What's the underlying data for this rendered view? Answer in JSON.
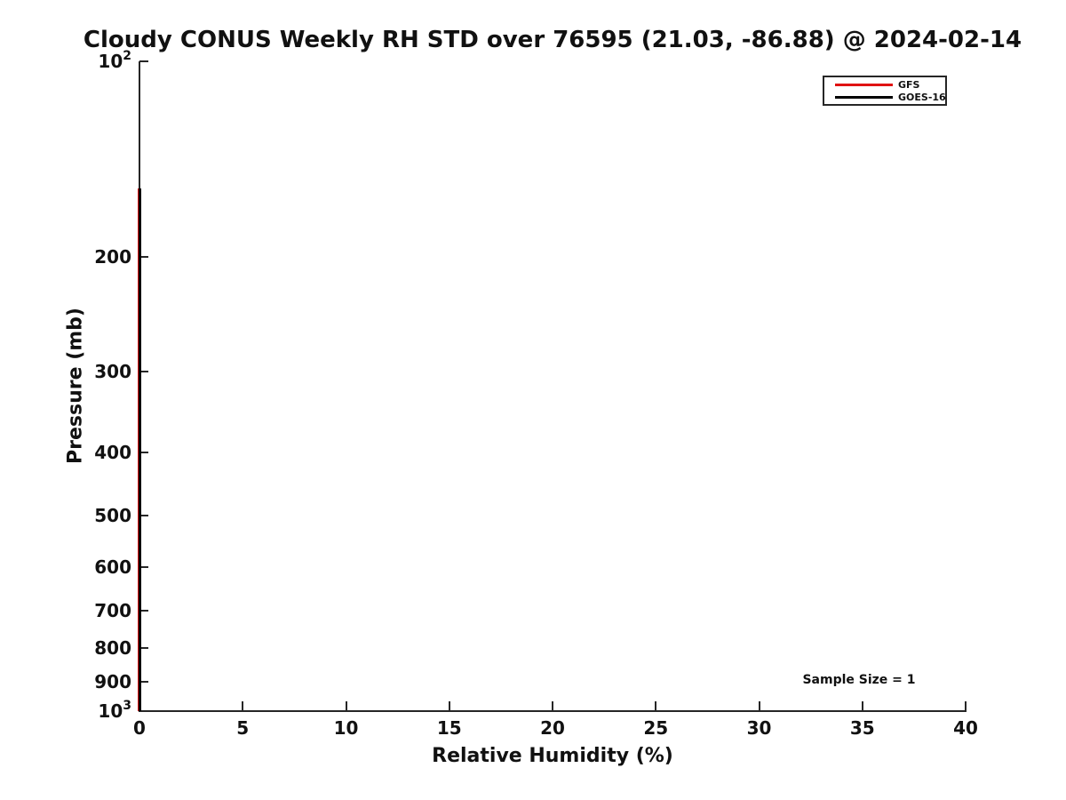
{
  "chart_data": {
    "type": "line",
    "title": "Cloudy CONUS Weekly RH STD over 76595 (21.03, -86.88) @ 2024-02-14",
    "xlabel": "Relative Humidity (%)",
    "ylabel": "Pressure (mb)",
    "annotation": "Sample Size = 1",
    "grid": false,
    "x_axis": {
      "min": 0,
      "max": 40,
      "scale": "linear",
      "ticks": [
        {
          "value": 0,
          "label": "0"
        },
        {
          "value": 5,
          "label": "5"
        },
        {
          "value": 10,
          "label": "10"
        },
        {
          "value": 15,
          "label": "15"
        },
        {
          "value": 20,
          "label": "20"
        },
        {
          "value": 25,
          "label": "25"
        },
        {
          "value": 30,
          "label": "30"
        },
        {
          "value": 35,
          "label": "35"
        },
        {
          "value": 40,
          "label": "40"
        }
      ]
    },
    "y_axis": {
      "min": 100,
      "max": 1000,
      "scale": "log",
      "inverted": true,
      "ticks": [
        {
          "value": 100,
          "label": "10^2"
        },
        {
          "value": 200,
          "label": "200"
        },
        {
          "value": 300,
          "label": "300"
        },
        {
          "value": 400,
          "label": "400"
        },
        {
          "value": 500,
          "label": "500"
        },
        {
          "value": 600,
          "label": "600"
        },
        {
          "value": 700,
          "label": "700"
        },
        {
          "value": 800,
          "label": "800"
        },
        {
          "value": 900,
          "label": "900"
        },
        {
          "value": 1000,
          "label": "10^3"
        }
      ]
    },
    "legend": {
      "position": "upper-right",
      "entries": [
        {
          "name": "GFS",
          "color": "#e01212"
        },
        {
          "name": "GOES-16",
          "color": "#000000"
        }
      ]
    },
    "series": [
      {
        "name": "GFS",
        "color": "#e01212",
        "rh_std_percent": 0,
        "pressure_top_mb": 157,
        "pressure_bottom_mb": 1000
      },
      {
        "name": "GOES-16",
        "color": "#000000",
        "rh_std_percent": 0,
        "pressure_top_mb": 157,
        "pressure_bottom_mb": 1000
      }
    ],
    "colors": {
      "axis": "#262626",
      "text": "#111111",
      "background": "#ffffff"
    }
  }
}
